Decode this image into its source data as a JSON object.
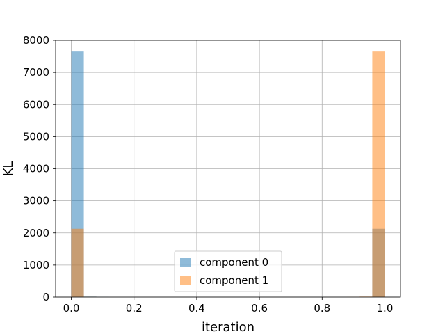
{
  "chart_data": {
    "type": "bar",
    "title": "",
    "xlabel": "iteration",
    "ylabel": "KL",
    "xlim": [
      -0.05,
      1.05
    ],
    "ylim": [
      0,
      8000
    ],
    "xticks": [
      0.0,
      0.2,
      0.4,
      0.6,
      0.8,
      1.0
    ],
    "xtick_labels": [
      "0.0",
      "0.2",
      "0.4",
      "0.6",
      "0.8",
      "1.0"
    ],
    "yticks": [
      0,
      1000,
      2000,
      3000,
      4000,
      5000,
      6000,
      7000,
      8000
    ],
    "ytick_labels": [
      "0",
      "1000",
      "2000",
      "3000",
      "4000",
      "5000",
      "6000",
      "7000",
      "8000"
    ],
    "grid": true,
    "legend_position": "bottom-center",
    "bin_width": 0.04,
    "series": [
      {
        "name": "component 0",
        "color": "#1f77b4",
        "opacity": 0.5,
        "bins": [
          {
            "x0": 0.0,
            "x1": 0.04,
            "value": 7650
          },
          {
            "x0": 0.04,
            "x1": 0.08,
            "value": 15
          },
          {
            "x0": 0.08,
            "x1": 0.12,
            "value": 5
          },
          {
            "x0": 0.96,
            "x1": 1.0,
            "value": 2130
          }
        ]
      },
      {
        "name": "component 1",
        "color": "#ff7f0e",
        "opacity": 0.5,
        "bins": [
          {
            "x0": 0.0,
            "x1": 0.04,
            "value": 2130
          },
          {
            "x0": 0.04,
            "x1": 0.08,
            "value": 10
          },
          {
            "x0": 0.88,
            "x1": 0.92,
            "value": 5
          },
          {
            "x0": 0.92,
            "x1": 0.96,
            "value": 15
          },
          {
            "x0": 0.96,
            "x1": 1.0,
            "value": 7650
          }
        ]
      }
    ]
  }
}
